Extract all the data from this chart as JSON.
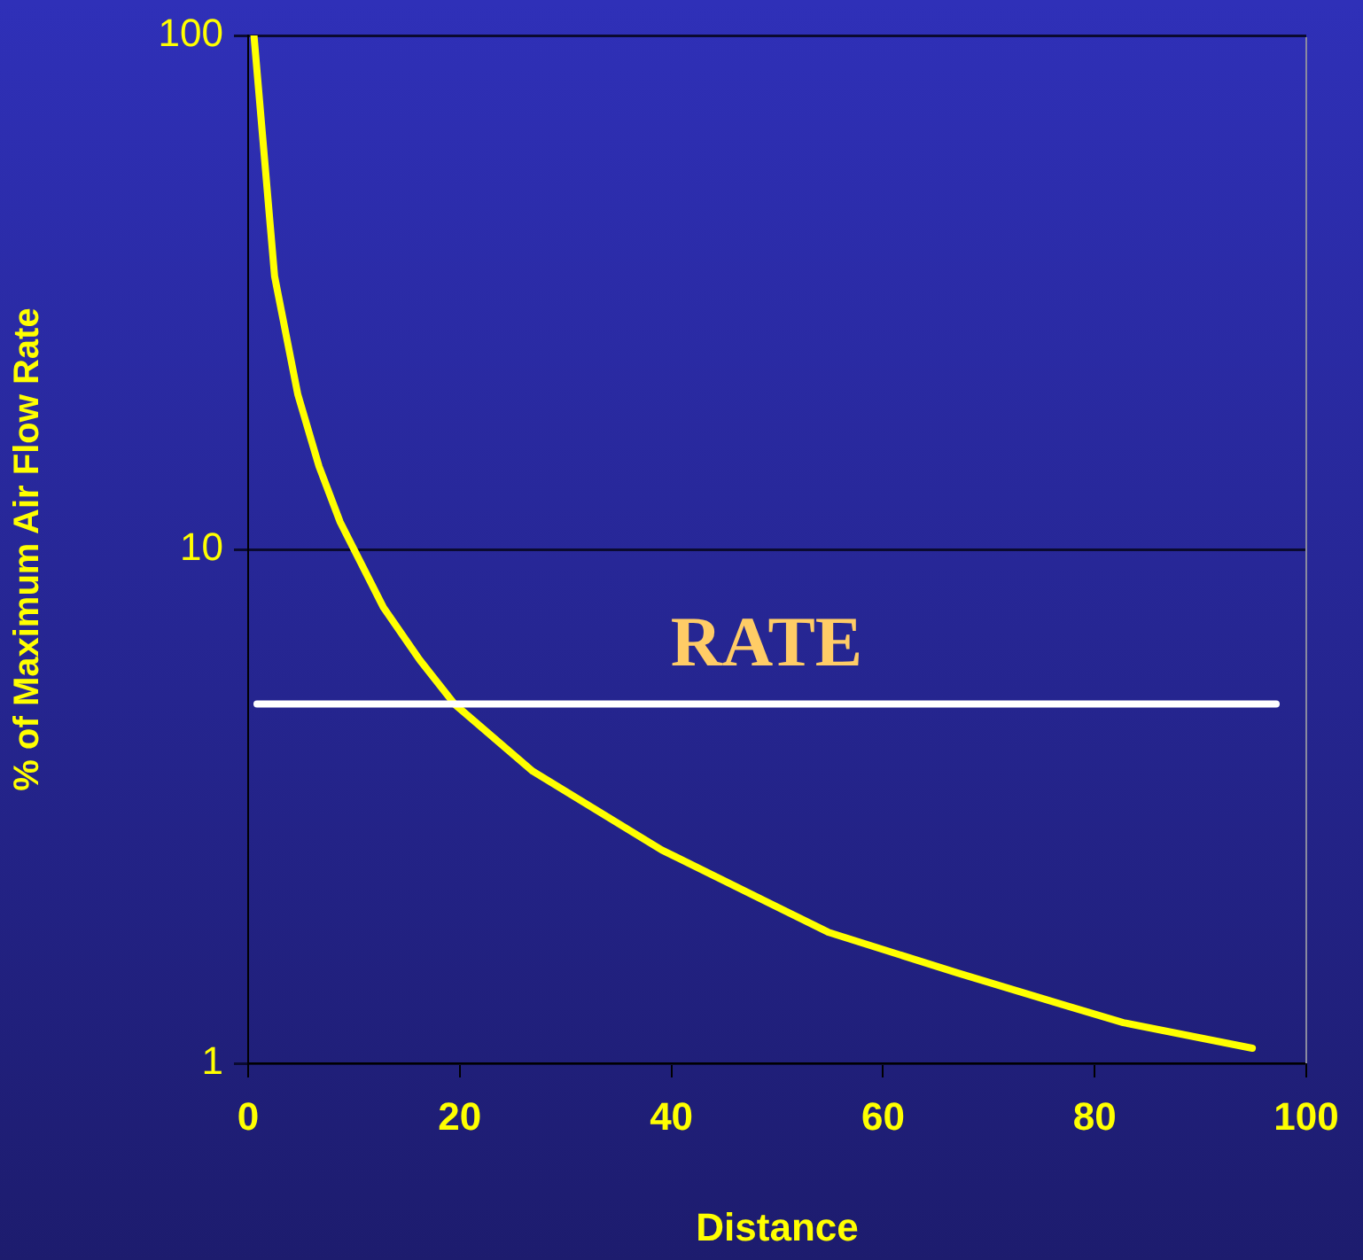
{
  "chart_data": {
    "type": "line",
    "xlabel": "Distance",
    "ylabel": "% of Maximum Air Flow Rate",
    "series": [
      {
        "color": "#ffff00",
        "x": [
          0.55,
          2.5,
          4.7,
          6.7,
          8.7,
          12.8,
          16.2,
          19.5,
          26.9,
          39.1,
          54.8,
          67,
          77,
          82.7,
          94.9
        ],
        "values": [
          100,
          34,
          20,
          14.5,
          11.3,
          7.7,
          6.1,
          5,
          3.7,
          2.6,
          1.8,
          1.5,
          1.3,
          1.2,
          1.07
        ]
      }
    ],
    "xlim": [
      0,
      100
    ],
    "xticks": [
      0,
      20,
      40,
      60,
      80,
      100
    ],
    "ylim": [
      1,
      100
    ],
    "yticks": [
      1,
      10,
      100
    ],
    "log": "y",
    "grid": "y",
    "legend": false,
    "ref_lines": [
      {
        "axis": "y",
        "value": 5,
        "label": "RATE",
        "color": "#ffffff"
      }
    ]
  }
}
